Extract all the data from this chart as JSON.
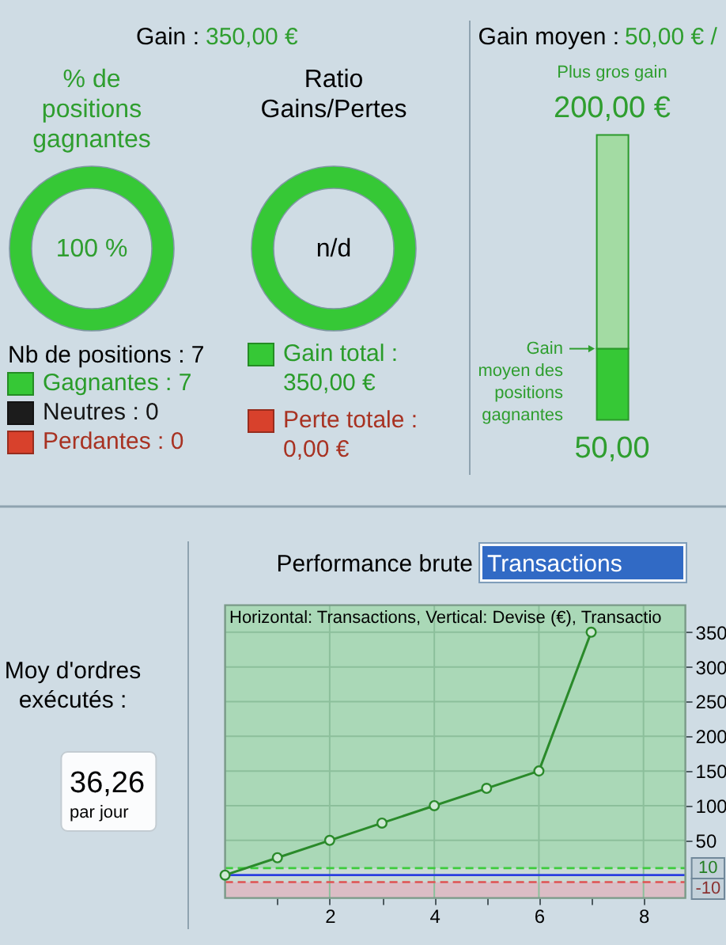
{
  "chart_data": [
    {
      "type": "other",
      "title": "Gain :",
      "annotations": [
        "350,00 €"
      ]
    },
    {
      "type": "donut",
      "title": "% de positions gagnantes",
      "categories": [
        "Gagnantes",
        "Neutres",
        "Perdantes"
      ],
      "values": [
        7,
        0,
        0
      ],
      "colors": [
        "#36c836",
        "#1c1c1c",
        "#d8412c"
      ],
      "value_labels": [
        "7",
        "0",
        "0"
      ],
      "legend_title": "Nb de positions : 7",
      "legend": "bottom",
      "annotations": [
        "100 %"
      ]
    },
    {
      "type": "donut",
      "title": "Ratio Gains/Pertes",
      "categories": [
        "Gain total : 350,00 €",
        "Perte totale : 0,00 €"
      ],
      "values": [
        350,
        0
      ],
      "colors": [
        "#36c836",
        "#d8412c"
      ],
      "legend": "bottom",
      "annotations": [
        "n/d"
      ]
    },
    {
      "type": "bar",
      "title": "Gain moyen :",
      "annotations": [
        "50,00 € /",
        "Plus gros gain"
      ],
      "categories": [
        null
      ],
      "stacked": true,
      "series": [
        {
          "name": "Gain moyen des positions gagnantes",
          "color": "#36c836",
          "values": [
            50
          ],
          "value_labels": [
            "50,00"
          ]
        },
        {
          "color": "#a3dba3",
          "values": [
            150
          ]
        }
      ],
      "totals": [
        "200,00 €"
      ],
      "ylim": [
        0,
        200
      ],
      "tick_labels": false
    },
    {
      "type": "other",
      "title": "Moy d'ordres exécutés :",
      "annotations": [
        "36,26",
        "par jour"
      ]
    },
    {
      "type": "line",
      "title": "Performance brute",
      "annotations": [
        "Transactions",
        "Horizontal: Transactions, Vertical: Devise (€), Transactio"
      ],
      "x": [
        0,
        1,
        2,
        3,
        4,
        5,
        6,
        7
      ],
      "series": [
        {
          "color": "#2a8a2a",
          "values": [
            0,
            25,
            50,
            75,
            100,
            125,
            150,
            350
          ]
        }
      ],
      "xlim": [
        0,
        8.8
      ],
      "xticks": [
        {
          "value": 1,
          "label": null
        },
        2,
        {
          "value": 3,
          "label": null
        },
        4,
        {
          "value": 5,
          "label": null
        },
        6,
        {
          "value": 7,
          "label": null
        },
        8
      ],
      "ylim": [
        -33,
        389
      ],
      "yticks": [
        50,
        100,
        150,
        200,
        250,
        300,
        350
      ],
      "grid": true,
      "marker": "circle",
      "ref_lines": [
        {
          "axis": "y",
          "value": 10,
          "label": "10",
          "color": "#3dcc3d",
          "line_style": "dashed"
        },
        {
          "axis": "y",
          "value": 0,
          "color": "#2b3fe0"
        },
        {
          "axis": "y",
          "value": -10,
          "label": "-10",
          "color": "#e05252",
          "line_style": "dashed"
        }
      ],
      "bands": [
        {
          "axis": "y",
          "from": 10,
          "to": 389,
          "color": "#aad8b7"
        },
        {
          "axis": "y",
          "from": -10,
          "to": 10,
          "color": "#cbdcd4"
        },
        {
          "axis": "y",
          "from": -33,
          "to": -10,
          "color": "#dbbdc5"
        }
      ]
    }
  ]
}
